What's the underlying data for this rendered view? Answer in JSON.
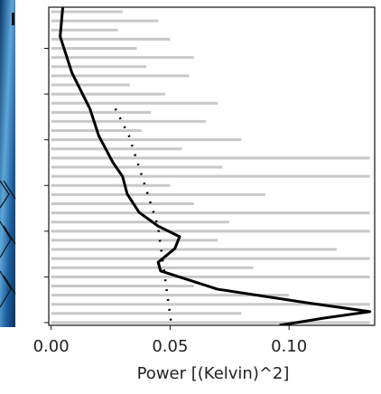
{
  "chart_data": {
    "type": "line",
    "xlabel": "Power [(Kelvin)^2]",
    "xlim": [
      -0.001,
      0.136
    ],
    "xticks": [
      {
        "value": 0,
        "label": "0.00"
      },
      {
        "value": 0.05,
        "label": "0.05"
      },
      {
        "value": 0.1,
        "label": "0.10"
      }
    ],
    "ylim": [
      -0.06,
      6.9
    ],
    "yticks": [
      0,
      1,
      2,
      3,
      4,
      5,
      6
    ],
    "series": [
      {
        "style": "spectrum",
        "color": "#c8c8c8",
        "y": [
          6.8,
          6.6,
          6.4,
          6.2,
          6.0,
          5.8,
          5.6,
          5.4,
          5.2,
          5.0,
          4.8,
          4.6,
          4.4,
          4.2,
          4.0,
          3.8,
          3.6,
          3.4,
          3.2,
          3.0,
          2.8,
          2.6,
          2.4,
          2.2,
          2.0,
          1.8,
          1.6,
          1.4,
          1.2,
          1.0,
          0.8,
          0.6,
          0.4,
          0.2,
          0.0
        ],
        "values": [
          0.03,
          0.045,
          0.028,
          0.05,
          0.036,
          0.06,
          0.04,
          0.058,
          0.033,
          0.048,
          0.07,
          0.042,
          0.065,
          0.038,
          0.08,
          0.055,
          0.134,
          0.072,
          0.134,
          0.05,
          0.09,
          0.06,
          0.134,
          0.075,
          0.134,
          0.07,
          0.12,
          0.134,
          0.085,
          0.134,
          0.06,
          0.1,
          0.134,
          0.08,
          0.134
        ]
      },
      {
        "style": "line",
        "color": "#000000",
        "y": [
          6.9,
          6.26,
          5.47,
          4.68,
          4.09,
          3.5,
          3.2,
          2.81,
          2.41,
          2.11,
          1.88,
          1.62,
          1.32,
          1.13,
          0.73,
          0.43,
          0.24,
          0.1,
          -0.06
        ],
        "values": [
          0.0049,
          0.0038,
          0.0087,
          0.0163,
          0.02,
          0.026,
          0.03,
          0.032,
          0.037,
          0.045,
          0.054,
          0.052,
          0.045,
          0.046,
          0.07,
          0.108,
          0.134,
          0.115,
          0.096
        ]
      },
      {
        "style": "dotted",
        "color": "#000000",
        "y": [
          4.68,
          4.09,
          2.11,
          -0.06
        ],
        "values": [
          0.027,
          0.0327,
          0.0449,
          0.0506
        ]
      }
    ]
  }
}
